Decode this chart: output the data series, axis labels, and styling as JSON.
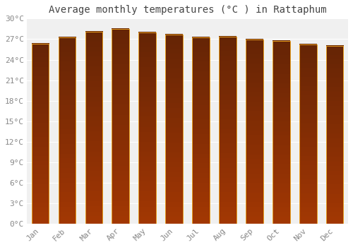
{
  "title": "Average monthly temperatures (°C ) in Rattaphum",
  "months": [
    "Jan",
    "Feb",
    "Mar",
    "Apr",
    "May",
    "Jun",
    "Jul",
    "Aug",
    "Sep",
    "Oct",
    "Nov",
    "Dec"
  ],
  "values": [
    26.3,
    27.2,
    28.1,
    28.5,
    28.0,
    27.7,
    27.2,
    27.3,
    26.9,
    26.7,
    26.2,
    26.0
  ],
  "bar_color": "#FDB92E",
  "bar_edge_color": "#E8A020",
  "background_color": "#ffffff",
  "plot_bg_color": "#f0f0f0",
  "grid_color": "#ffffff",
  "ytick_step": 3,
  "ylim": [
    0,
    30
  ],
  "title_fontsize": 10,
  "tick_fontsize": 8,
  "tick_color": "#888888",
  "title_color": "#444444",
  "bar_width": 0.65
}
